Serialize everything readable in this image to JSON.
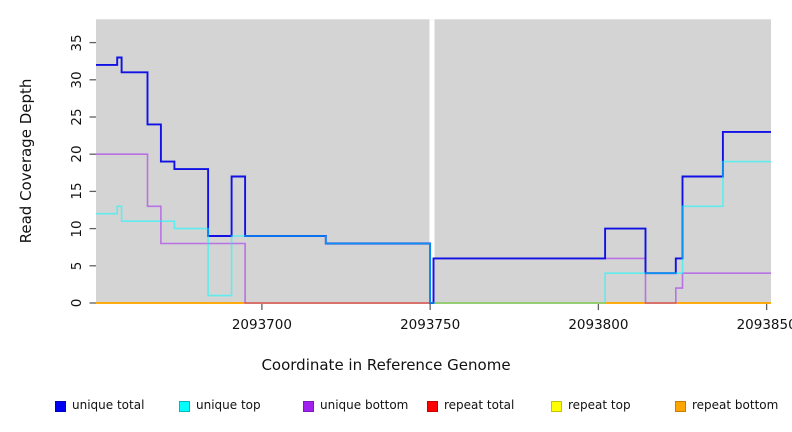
{
  "chart_data": {
    "type": "line",
    "step": true,
    "title": "",
    "xlabel": "Coordinate in Reference Genome",
    "ylabel": "Read Coverage Depth",
    "xlim": [
      2093650.7,
      2093851.3
    ],
    "ylim": [
      0,
      38.13
    ],
    "x_ticks": [
      {
        "value": 2093700,
        "label": "2093700"
      },
      {
        "value": 2093750,
        "label": "2093750"
      },
      {
        "value": 2093800,
        "label": "2093800"
      },
      {
        "value": 2093850,
        "label": "2093850"
      }
    ],
    "y_ticks": [
      {
        "value": 0,
        "label": "0"
      },
      {
        "value": 5,
        "label": "5"
      },
      {
        "value": 10,
        "label": "10"
      },
      {
        "value": 15,
        "label": "15"
      },
      {
        "value": 20,
        "label": "20"
      },
      {
        "value": 25,
        "label": "25"
      },
      {
        "value": 30,
        "label": "30"
      },
      {
        "value": 35,
        "label": "35"
      }
    ],
    "grid": false,
    "plot_bg_color": "#d4d4d4",
    "tick_color": "#606060",
    "zero_coverage_gap": {
      "x0": 2093749.8,
      "x1": 2093751.3,
      "color": "#ffffff"
    },
    "series_note": "steps = [position, depth] change points; depth holds until next change point; repeat series are 0 across the whole window; arrays listed in draw order (bottom to top)",
    "series": [
      {
        "name": "repeat total",
        "color": "#ff0000",
        "opacity": 1,
        "steps": [
          [
            2093650.7,
            0
          ]
        ]
      },
      {
        "name": "repeat top",
        "color": "#ffff00",
        "opacity": 1,
        "steps": [
          [
            2093650.7,
            0
          ]
        ]
      },
      {
        "name": "repeat bottom",
        "color": "#ffa500",
        "opacity": 1,
        "steps": [
          [
            2093650.7,
            0
          ]
        ]
      },
      {
        "name": "unique bottom",
        "color": "#a020f0",
        "opacity": 0.55,
        "steps": [
          [
            2093650.7,
            20
          ],
          [
            2093666,
            13
          ],
          [
            2093670,
            8
          ],
          [
            2093695,
            0
          ],
          [
            2093751,
            6
          ],
          [
            2093814,
            0
          ],
          [
            2093823,
            2
          ],
          [
            2093825,
            4
          ]
        ]
      },
      {
        "name": "unique total",
        "color": "#1111e6",
        "opacity": 1,
        "steps": [
          [
            2093650.7,
            32
          ],
          [
            2093657,
            33
          ],
          [
            2093658.3,
            31
          ],
          [
            2093666,
            24
          ],
          [
            2093670,
            19
          ],
          [
            2093674,
            18
          ],
          [
            2093684,
            9
          ],
          [
            2093691,
            17
          ],
          [
            2093695,
            9
          ],
          [
            2093719,
            8
          ],
          [
            2093750,
            0
          ],
          [
            2093751,
            6
          ],
          [
            2093802,
            10
          ],
          [
            2093814,
            4
          ],
          [
            2093823,
            6
          ],
          [
            2093825,
            17
          ],
          [
            2093837,
            23
          ]
        ]
      },
      {
        "name": "unique top",
        "color": "#00ffff",
        "opacity": 0.55,
        "steps": [
          [
            2093650.7,
            12
          ],
          [
            2093657,
            13
          ],
          [
            2093658.3,
            11
          ],
          [
            2093674,
            10
          ],
          [
            2093684,
            1
          ],
          [
            2093691,
            9
          ],
          [
            2093719,
            8
          ],
          [
            2093750,
            0
          ],
          [
            2093802,
            4
          ],
          [
            2093825,
            13
          ],
          [
            2093837,
            19
          ]
        ]
      }
    ],
    "legend": {
      "position": "bottom",
      "entries": [
        {
          "label": "unique total",
          "color": "#0000f2",
          "border": "#0000c0"
        },
        {
          "label": "unique top",
          "color": "#00ffff",
          "border": "#00b8c0"
        },
        {
          "label": "unique bottom",
          "color": "#a020f0",
          "border": "#7d18bc"
        },
        {
          "label": "repeat total",
          "color": "#ff0000",
          "border": "#c40000"
        },
        {
          "label": "repeat top",
          "color": "#ffff00",
          "border": "#c4c400"
        },
        {
          "label": "repeat bottom",
          "color": "#ffa500",
          "border": "#c87f00"
        }
      ]
    }
  }
}
